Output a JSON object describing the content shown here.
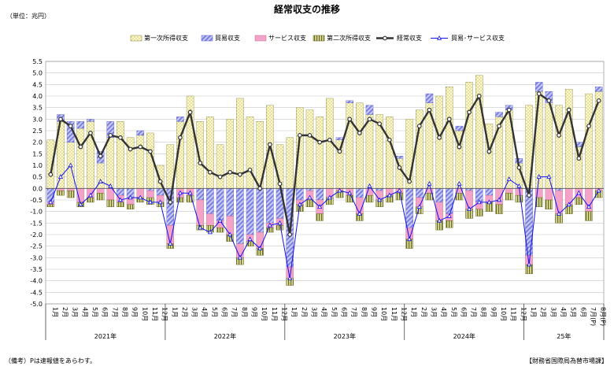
{
  "page": {
    "title": "経常収支の推移",
    "unit_label": "（単位：兆円）",
    "footnote": "（備考）Pは速報値をあらわす。",
    "source": "【財務省国際局為替市場課】"
  },
  "colors": {
    "primary_income": "#fdf8c4",
    "trade": "#9a9ee8",
    "services": "#f4a3c8",
    "secondary_income": "#b8b87a",
    "current_account": "#333333",
    "trade_services": "#1010ee",
    "grid": "#c8c8c8",
    "axis": "#000000"
  },
  "chart_data": {
    "type": "bar",
    "stacked": true,
    "title": "経常収支の推移",
    "ylabel": "（単位：兆円）",
    "ylim": [
      -5.0,
      5.5
    ],
    "ytick_step": 0.5,
    "yticks": [
      "5.5",
      "5.0",
      "4.5",
      "4.0",
      "3.5",
      "3.0",
      "2.5",
      "2.0",
      "1.5",
      "1.0",
      "0.5",
      "0.0",
      "-0.5",
      "-1.0",
      "-1.5",
      "-2.0",
      "-2.5",
      "-3.0",
      "-3.5",
      "-4.0",
      "-4.5",
      "-5.0"
    ],
    "categories": [
      "1月",
      "2月",
      "3月",
      "4月",
      "5月",
      "6月",
      "7月",
      "8月",
      "9月",
      "10月",
      "11月",
      "12月",
      "1月",
      "2月",
      "3月",
      "4月",
      "5月",
      "6月",
      "7月",
      "8月",
      "9月",
      "10月",
      "11月",
      "12月",
      "1月",
      "2月",
      "3月",
      "4月",
      "5月",
      "6月",
      "7月",
      "8月",
      "9月",
      "10月",
      "11月",
      "12月",
      "1月",
      "2月",
      "3月",
      "4月",
      "5月",
      "6月",
      "7月",
      "8月",
      "9月",
      "10月",
      "11月",
      "12月",
      "1月",
      "2月",
      "3月",
      "4月",
      "5月",
      "6月",
      "7月(P)",
      "8月(P)"
    ],
    "years": [
      {
        "label": "2021年",
        "start": 0,
        "count": 12
      },
      {
        "label": "2022年",
        "start": 12,
        "count": 12
      },
      {
        "label": "2023年",
        "start": 24,
        "count": 12
      },
      {
        "label": "2024年",
        "start": 36,
        "count": 12
      },
      {
        "label": "25年",
        "start": 48,
        "count": 8
      }
    ],
    "legend": [
      "第一次所得収支",
      "貿易収支",
      "サービス収支",
      "第二次所得収支",
      "経常収支",
      "貿易･サービス収支"
    ],
    "series": [
      {
        "name": "第一次所得収支",
        "kind": "bar",
        "values": [
          2.1,
          2.9,
          2.0,
          2.6,
          2.9,
          1.1,
          2.2,
          2.9,
          2.2,
          2.3,
          2.4,
          1.0,
          1.9,
          2.9,
          4.0,
          2.9,
          3.1,
          1.9,
          3.0,
          3.9,
          3.1,
          2.9,
          3.6,
          1.9,
          2.2,
          3.5,
          3.4,
          3.1,
          3.9,
          2.1,
          3.7,
          3.7,
          3.2,
          3.2,
          3.1,
          1.3,
          3.0,
          3.4,
          3.7,
          4.0,
          4.4,
          2.5,
          4.6,
          4.9,
          2.8,
          3.1,
          3.4,
          1.1,
          3.6,
          4.2,
          3.7,
          3.6,
          4.3,
          1.8,
          4.1,
          4.2
        ]
      },
      {
        "name": "貿易収支",
        "kind": "bar",
        "values": [
          -0.6,
          0.3,
          0.9,
          0.3,
          0.1,
          0.5,
          0.7,
          -0.3,
          -0.4,
          0.2,
          -0.1,
          -0.3,
          -1.6,
          0.2,
          0.0,
          -0.5,
          -1.1,
          -1.4,
          -1.2,
          -2.4,
          -2.0,
          -1.9,
          -1.5,
          -1.3,
          -3.4,
          -0.5,
          -0.1,
          -0.5,
          0.0,
          0.1,
          0.1,
          -0.4,
          0.4,
          -0.1,
          0.0,
          0.1,
          -1.7,
          -0.4,
          0.4,
          -0.6,
          -1.1,
          0.2,
          -0.1,
          -0.6,
          -0.3,
          0.2,
          0.2,
          0.2,
          -2.9,
          0.4,
          0.5,
          -0.1,
          0.0,
          0.2,
          0.0,
          0.2
        ]
      },
      {
        "name": "サービス収支",
        "kind": "bar",
        "values": [
          -0.1,
          -0.1,
          -0.1,
          -0.6,
          -0.4,
          -0.2,
          -0.5,
          -0.3,
          -0.3,
          -0.4,
          -0.3,
          -0.3,
          -0.8,
          -0.4,
          -0.3,
          -1.1,
          -0.5,
          -0.3,
          -0.8,
          -0.6,
          -0.3,
          -0.7,
          -0.2,
          -0.3,
          -0.5,
          -0.2,
          -0.4,
          -0.6,
          -0.4,
          -0.1,
          -0.3,
          -0.7,
          -0.3,
          -0.4,
          -0.3,
          -0.2,
          -0.5,
          -0.4,
          -0.2,
          -0.8,
          -0.3,
          -0.2,
          -0.8,
          -0.3,
          -0.3,
          -0.7,
          -0.2,
          -0.3,
          -0.4,
          -0.4,
          -0.5,
          -1.0,
          -0.7,
          -0.4,
          -1.0,
          -0.1
        ]
      },
      {
        "name": "第二次所得収支",
        "kind": "bar",
        "values": [
          -0.1,
          -0.2,
          -0.3,
          -0.2,
          -0.2,
          -0.3,
          -0.3,
          -0.2,
          -0.2,
          -0.2,
          -0.3,
          -0.2,
          -0.2,
          -0.2,
          -0.3,
          -0.2,
          -0.3,
          -0.2,
          -0.3,
          -0.3,
          -0.2,
          -0.3,
          -0.2,
          -0.2,
          -0.3,
          -0.3,
          -0.3,
          -0.3,
          -0.3,
          -0.3,
          -0.3,
          -0.3,
          -0.3,
          -0.3,
          -0.3,
          -0.3,
          -0.4,
          -0.3,
          -0.3,
          -0.4,
          -0.3,
          -0.3,
          -0.4,
          -0.3,
          -0.4,
          -0.4,
          -0.3,
          -0.3,
          -0.4,
          -0.4,
          -0.4,
          -0.4,
          -0.4,
          -0.3,
          -0.4,
          -0.3
        ]
      },
      {
        "name": "経常収支",
        "kind": "line",
        "values": [
          0.6,
          3.0,
          2.7,
          1.8,
          2.4,
          1.4,
          2.3,
          2.2,
          1.7,
          1.8,
          1.6,
          0.3,
          -0.6,
          2.2,
          3.3,
          1.1,
          0.7,
          0.5,
          0.7,
          0.6,
          0.8,
          0.0,
          1.9,
          0.2,
          -2.0,
          2.3,
          2.3,
          2.0,
          2.1,
          1.6,
          3.0,
          2.4,
          3.0,
          2.8,
          2.1,
          0.9,
          0.3,
          2.7,
          3.4,
          2.2,
          3.0,
          1.8,
          3.3,
          4.0,
          1.6,
          2.7,
          3.4,
          0.9,
          -0.3,
          4.1,
          3.8,
          2.3,
          3.4,
          1.3,
          2.7,
          3.8
        ]
      },
      {
        "name": "貿易･サービス収支",
        "kind": "line",
        "values": [
          -0.6,
          0.5,
          1.0,
          -0.7,
          -0.3,
          0.3,
          0.1,
          -0.5,
          -0.4,
          -0.4,
          -0.6,
          -0.6,
          -2.4,
          -0.2,
          -0.2,
          -1.7,
          -1.9,
          -1.4,
          -2.0,
          -3.0,
          -2.2,
          -2.6,
          -1.6,
          -1.5,
          -3.9,
          -0.7,
          -0.4,
          -0.8,
          -0.4,
          -0.1,
          -0.2,
          -1.1,
          0.1,
          -0.5,
          -0.3,
          -0.1,
          -2.2,
          -0.8,
          0.2,
          -1.4,
          -1.2,
          0.2,
          -0.9,
          -0.6,
          -0.6,
          -0.5,
          0.4,
          0.1,
          -3.3,
          0.5,
          0.5,
          -1.1,
          -0.7,
          -0.2,
          -0.8,
          -0.1
        ]
      }
    ]
  }
}
